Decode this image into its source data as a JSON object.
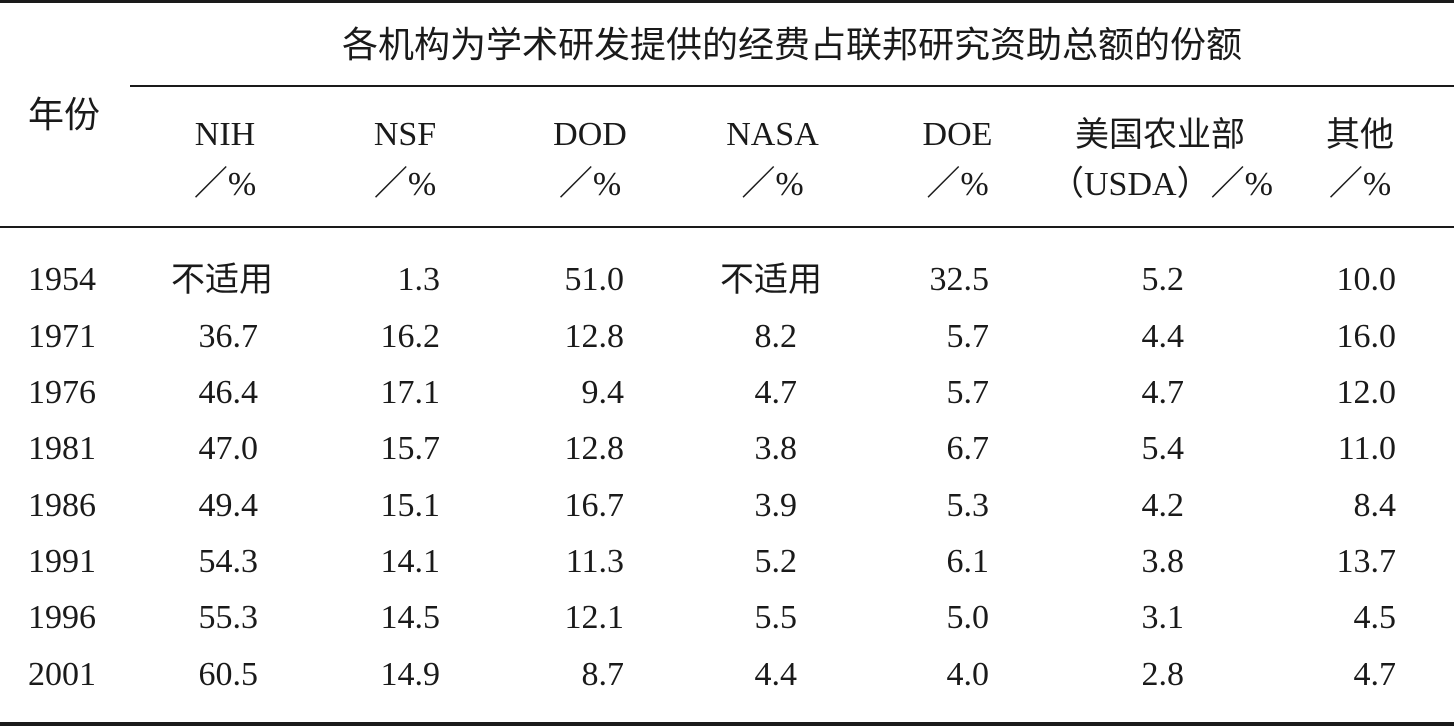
{
  "table": {
    "group_title": "各机构为学术研发提供的经费占联邦研究资助总额的份额",
    "year_header": "年份",
    "columns": [
      {
        "name": "NIH",
        "unit": "／%"
      },
      {
        "name": "NSF",
        "unit": "／%"
      },
      {
        "name": "DOD",
        "unit": "／%"
      },
      {
        "name": "NASA",
        "unit": "／%"
      },
      {
        "name": "DOE",
        "unit": "／%"
      },
      {
        "name": "美国农业部",
        "unit": "（USDA）／%"
      },
      {
        "name": "其他",
        "unit": "／%"
      }
    ],
    "rows": [
      {
        "year": "1954",
        "values": [
          "不适用",
          "1.3",
          "51.0",
          "不适用",
          "32.5",
          "5.2",
          "10.0"
        ]
      },
      {
        "year": "1971",
        "values": [
          "36.7",
          "16.2",
          "12.8",
          "8.2",
          "5.7",
          "4.4",
          "16.0"
        ]
      },
      {
        "year": "1976",
        "values": [
          "46.4",
          "17.1",
          "9.4",
          "4.7",
          "5.7",
          "4.7",
          "12.0"
        ]
      },
      {
        "year": "1981",
        "values": [
          "47.0",
          "15.7",
          "12.8",
          "3.8",
          "6.7",
          "5.4",
          "11.0"
        ]
      },
      {
        "year": "1986",
        "values": [
          "49.4",
          "15.1",
          "16.7",
          "3.9",
          "5.3",
          "4.2",
          "8.4"
        ]
      },
      {
        "year": "1991",
        "values": [
          "54.3",
          "14.1",
          "11.3",
          "5.2",
          "6.1",
          "3.8",
          "13.7"
        ]
      },
      {
        "year": "1996",
        "values": [
          "55.3",
          "14.5",
          "12.1",
          "5.5",
          "5.0",
          "3.1",
          "4.5"
        ]
      },
      {
        "year": "2001",
        "values": [
          "60.5",
          "14.9",
          "8.7",
          "4.4",
          "4.0",
          "2.8",
          "4.7"
        ]
      }
    ]
  }
}
